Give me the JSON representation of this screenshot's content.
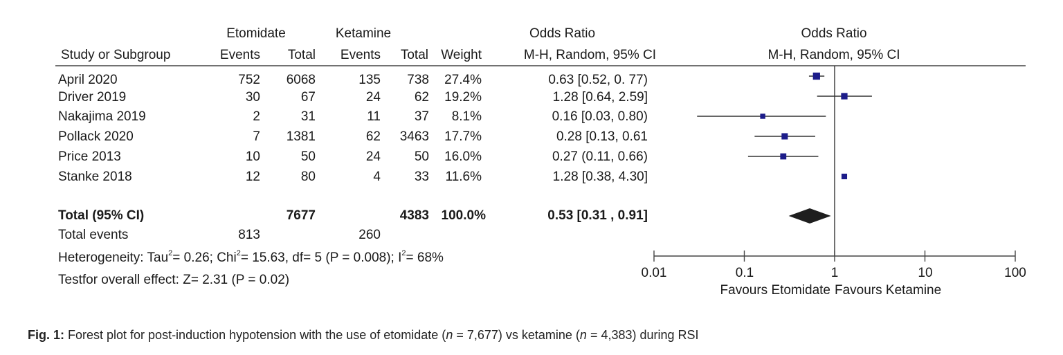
{
  "headers": {
    "group1": "Etomidate",
    "group2": "Ketamine",
    "or_left": "Odds Ratio",
    "study": "Study or Subgroup",
    "events1": "Events",
    "total1": "Total",
    "events2": "Events",
    "total2": "Total",
    "weight": "Weight",
    "method_left": "M-H, Random, 95% CI",
    "or_right": "Odds Ratio",
    "method_right": "M-H, Random, 95% CI"
  },
  "rows": [
    {
      "study": "April 2020",
      "e1": "752",
      "t1": "6068",
      "e2": "135",
      "t2": "738",
      "weight": "27.4%",
      "ci": "0.63 [0.52, 0. 77)"
    },
    {
      "study": "Driver 2019",
      "e1": "30",
      "t1": "67",
      "e2": "24",
      "t2": "62",
      "weight": "19.2%",
      "ci": "1.28 [0.64, 2.59]"
    },
    {
      "study": "Nakajima 2019",
      "e1": "2",
      "t1": "31",
      "e2": "11",
      "t2": "37",
      "weight": "8.1%",
      "ci": "0.16 [0.03, 0.80)"
    },
    {
      "study": "Pollack 2020",
      "e1": "7",
      "t1": "1381",
      "e2": "62",
      "t2": "3463",
      "weight": "17.7%",
      "ci": "0.28 [0.13, 0.61"
    },
    {
      "study": "Price 2013",
      "e1": "10",
      "t1": "50",
      "e2": "24",
      "t2": "50",
      "weight": "16.0%",
      "ci": "0.27 (0.11, 0.66)"
    },
    {
      "study": "Stanke 2018",
      "e1": "12",
      "t1": "80",
      "e2": "4",
      "t2": "33",
      "weight": "11.6%",
      "ci": "1.28 [0.38, 4.30]"
    }
  ],
  "total": {
    "label": "Total (95% CI)",
    "t1": "7677",
    "t2": "4383",
    "weight": "100.0%",
    "ci": "0.53 [0.31 , 0.91]"
  },
  "total_events": {
    "label": "Total events",
    "e1": "813",
    "e2": "260"
  },
  "heterogeneity": {
    "prefix": "Heterogeneity: Tau",
    "tau": "= 0.26; Chi",
    "chi": "= 15.63, df= 5 (P = 0.008); I",
    "i": "= 68%",
    "sup": "2"
  },
  "overall_effect": "Testfor overall effect: Z= 2.31 (P = 0.02)",
  "caption": {
    "label": "Fig. 1:",
    "text_a": " Forest plot for post-induction hypotension with the use of etomidate (",
    "n1": "n",
    "text_b": " = 7,677) vs ketamine (",
    "n2": "n",
    "text_c": " = 4,383) during RSI"
  },
  "chart_data": {
    "type": "forest",
    "scale": "log",
    "xlim": [
      0.01,
      100
    ],
    "ticks": [
      "0.01",
      "0.1",
      "1",
      "10",
      "100"
    ],
    "xlabel_left": "Favours Etomidate",
    "xlabel_right": "Favours Ketamine",
    "reference_line": 1,
    "studies": [
      {
        "name": "April 2020",
        "or": 0.63,
        "lo": 0.52,
        "hi": 0.77,
        "weight": 27.4,
        "ci_drawn": true
      },
      {
        "name": "Driver 2019",
        "or": 1.28,
        "lo": 0.64,
        "hi": 2.59,
        "weight": 19.2,
        "ci_drawn": true
      },
      {
        "name": "Nakajima 2019",
        "or": 0.16,
        "lo": 0.03,
        "hi": 0.8,
        "weight": 8.1,
        "ci_drawn": true
      },
      {
        "name": "Pollack 2020",
        "or": 0.28,
        "lo": 0.13,
        "hi": 0.61,
        "weight": 17.7,
        "ci_drawn": true
      },
      {
        "name": "Price 2013",
        "or": 0.27,
        "lo": 0.11,
        "hi": 0.66,
        "weight": 16.0,
        "ci_drawn": true
      },
      {
        "name": "Stanke 2018",
        "or": 1.28,
        "lo": 0.38,
        "hi": 4.3,
        "weight": 11.6,
        "ci_drawn": false
      }
    ],
    "pooled": {
      "or": 0.53,
      "lo": 0.31,
      "hi": 0.91
    },
    "colors": {
      "square": "#1c1c8a",
      "diamond": "#1e1e1e",
      "line": "#333333"
    }
  }
}
